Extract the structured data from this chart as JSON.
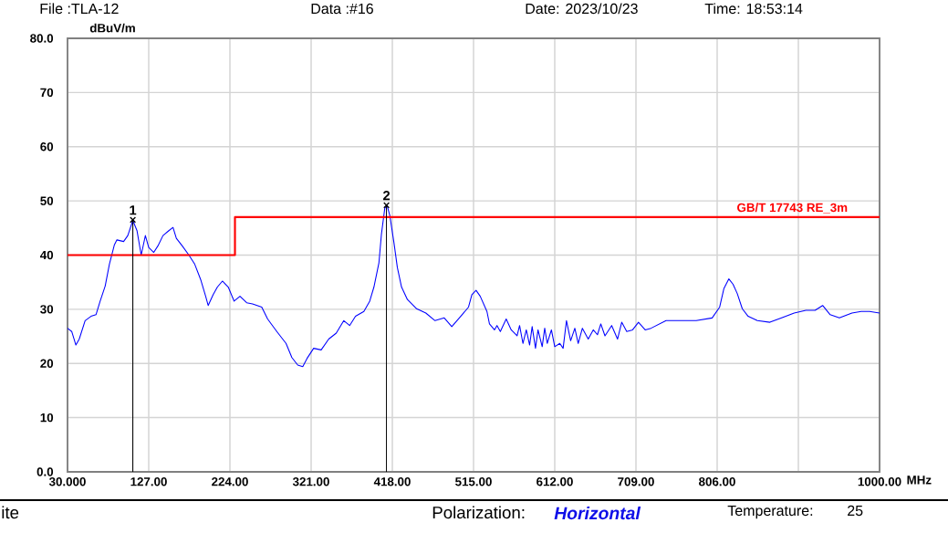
{
  "chart_data": {
    "type": "line",
    "xlabel": "MHz",
    "ylabel": "dBuV/m",
    "xlim": [
      30,
      1000
    ],
    "ylim": [
      0,
      80
    ],
    "xticks": [
      {
        "value": 30,
        "label": "30.000"
      },
      {
        "value": 127,
        "label": "127.00"
      },
      {
        "value": 224,
        "label": "224.00"
      },
      {
        "value": 321,
        "label": "321.00"
      },
      {
        "value": 418,
        "label": "418.00"
      },
      {
        "value": 515,
        "label": "515.00"
      },
      {
        "value": 612,
        "label": "612.00"
      },
      {
        "value": 709,
        "label": "709.00"
      },
      {
        "value": 806,
        "label": "806.00"
      },
      {
        "value": 903,
        "label": null
      },
      {
        "value": 1000,
        "label": "1000.00"
      }
    ],
    "yticks": [
      {
        "value": 0,
        "label": "0.0"
      },
      10,
      20,
      30,
      40,
      50,
      60,
      70,
      {
        "value": 80,
        "label": "80.0"
      }
    ],
    "grid": true,
    "series": [
      {
        "color": "#0000ff",
        "x": [
          30,
          35,
          40,
          44,
          51,
          58,
          64,
          69,
          75,
          80,
          86,
          89,
          97,
          102,
          108,
          113,
          118,
          123,
          127,
          133,
          138,
          144,
          151,
          156,
          160,
          167,
          175,
          182,
          189,
          195,
          198,
          204,
          209,
          215,
          222,
          229,
          236,
          244,
          251,
          262,
          269,
          280,
          291,
          298,
          305,
          311,
          316,
          324,
          333,
          342,
          351,
          360,
          367,
          374,
          384,
          391,
          396,
          402,
          405,
          409,
          412,
          415,
          420,
          424,
          429,
          436,
          447,
          458,
          469,
          480,
          489,
          498,
          509,
          513,
          518,
          523,
          531,
          534,
          540,
          543,
          547,
          554,
          560,
          567,
          570,
          574,
          578,
          582,
          585,
          589,
          592,
          597,
          600,
          603,
          608,
          612,
          618,
          622,
          626,
          631,
          636,
          640,
          645,
          652,
          658,
          663,
          667,
          672,
          680,
          687,
          692,
          698,
          705,
          712,
          720,
          727,
          745,
          763,
          781,
          800,
          809,
          814,
          820,
          825,
          830,
          836,
          843,
          854,
          869,
          883,
          898,
          912,
          923,
          932,
          941,
          952,
          967,
          978,
          988,
          1000
        ],
        "values": [
          26.5,
          25.9,
          23.4,
          24.5,
          27.9,
          28.7,
          29.0,
          31.5,
          34.3,
          38.3,
          41.9,
          42.8,
          42.5,
          43.6,
          46.4,
          44.5,
          40.0,
          43.6,
          41.4,
          40.5,
          41.7,
          43.6,
          44.5,
          45.1,
          43.1,
          41.7,
          40.0,
          38.3,
          35.5,
          32.4,
          30.7,
          32.7,
          34.1,
          35.2,
          34.1,
          31.5,
          32.4,
          31.2,
          31.0,
          30.4,
          28.2,
          25.9,
          23.7,
          21.1,
          19.7,
          19.4,
          20.9,
          22.8,
          22.5,
          24.5,
          25.6,
          27.9,
          27.0,
          28.7,
          29.6,
          31.5,
          34.1,
          38.6,
          43.9,
          48.7,
          49.0,
          47.3,
          42.2,
          37.7,
          34.1,
          31.8,
          30.1,
          29.3,
          27.9,
          28.4,
          26.8,
          28.4,
          30.4,
          32.7,
          33.5,
          32.4,
          29.6,
          27.3,
          26.2,
          27.0,
          25.9,
          28.2,
          26.2,
          25.1,
          27.0,
          23.7,
          26.2,
          23.4,
          26.8,
          22.8,
          26.2,
          23.1,
          26.5,
          23.7,
          26.2,
          23.1,
          23.7,
          22.8,
          27.9,
          24.2,
          26.5,
          23.7,
          26.5,
          24.5,
          26.2,
          25.3,
          27.3,
          25.1,
          27.0,
          24.5,
          27.6,
          25.9,
          26.2,
          27.6,
          26.2,
          26.5,
          27.9,
          27.9,
          27.9,
          28.4,
          30.4,
          33.8,
          35.6,
          34.6,
          32.9,
          30.1,
          28.7,
          27.9,
          27.6,
          28.4,
          29.3,
          29.8,
          29.8,
          30.7,
          29.0,
          28.4,
          29.3,
          29.6,
          29.6,
          29.3
        ]
      },
      {
        "type": "step",
        "name": "GB/T 17743 RE_3m",
        "color": "#ff0000",
        "x": [
          30,
          230,
          1000
        ],
        "values": [
          40,
          47,
          47
        ]
      },
      {
        "type": "lollipop",
        "color": "#000000",
        "marker": "cross",
        "x": [
          108,
          411
        ],
        "values": [
          46.5,
          49.2
        ]
      }
    ],
    "annotations": [
      {
        "text": "1",
        "x": 108,
        "y": 46.5
      },
      {
        "text": "2",
        "x": 411,
        "y": 49.2
      },
      "File :TLA-12",
      "Data :#16",
      "Date: 2023/10/23",
      "Time: 18:53:14",
      "ite",
      "Polarization:",
      "Horizontal",
      "Temperature:",
      "25"
    ]
  }
}
